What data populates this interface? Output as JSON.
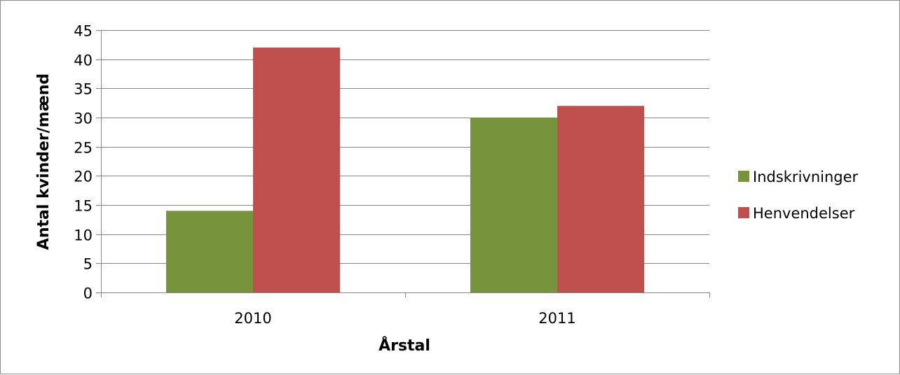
{
  "chart_data": {
    "type": "bar",
    "title": "",
    "xlabel": "Årstal",
    "ylabel": "Antal kvinder/mænd",
    "categories": [
      "2010",
      "2011"
    ],
    "series": [
      {
        "name": "Indskrivninger",
        "values": [
          14,
          30
        ],
        "color": "#77933c"
      },
      {
        "name": "Henvendelser",
        "values": [
          42,
          32
        ],
        "color": "#c0504d"
      }
    ],
    "ylim": [
      0,
      45
    ],
    "yticks": [
      0,
      5,
      10,
      15,
      20,
      25,
      30,
      35,
      40,
      45
    ],
    "grid": true,
    "legend_position": "right"
  }
}
